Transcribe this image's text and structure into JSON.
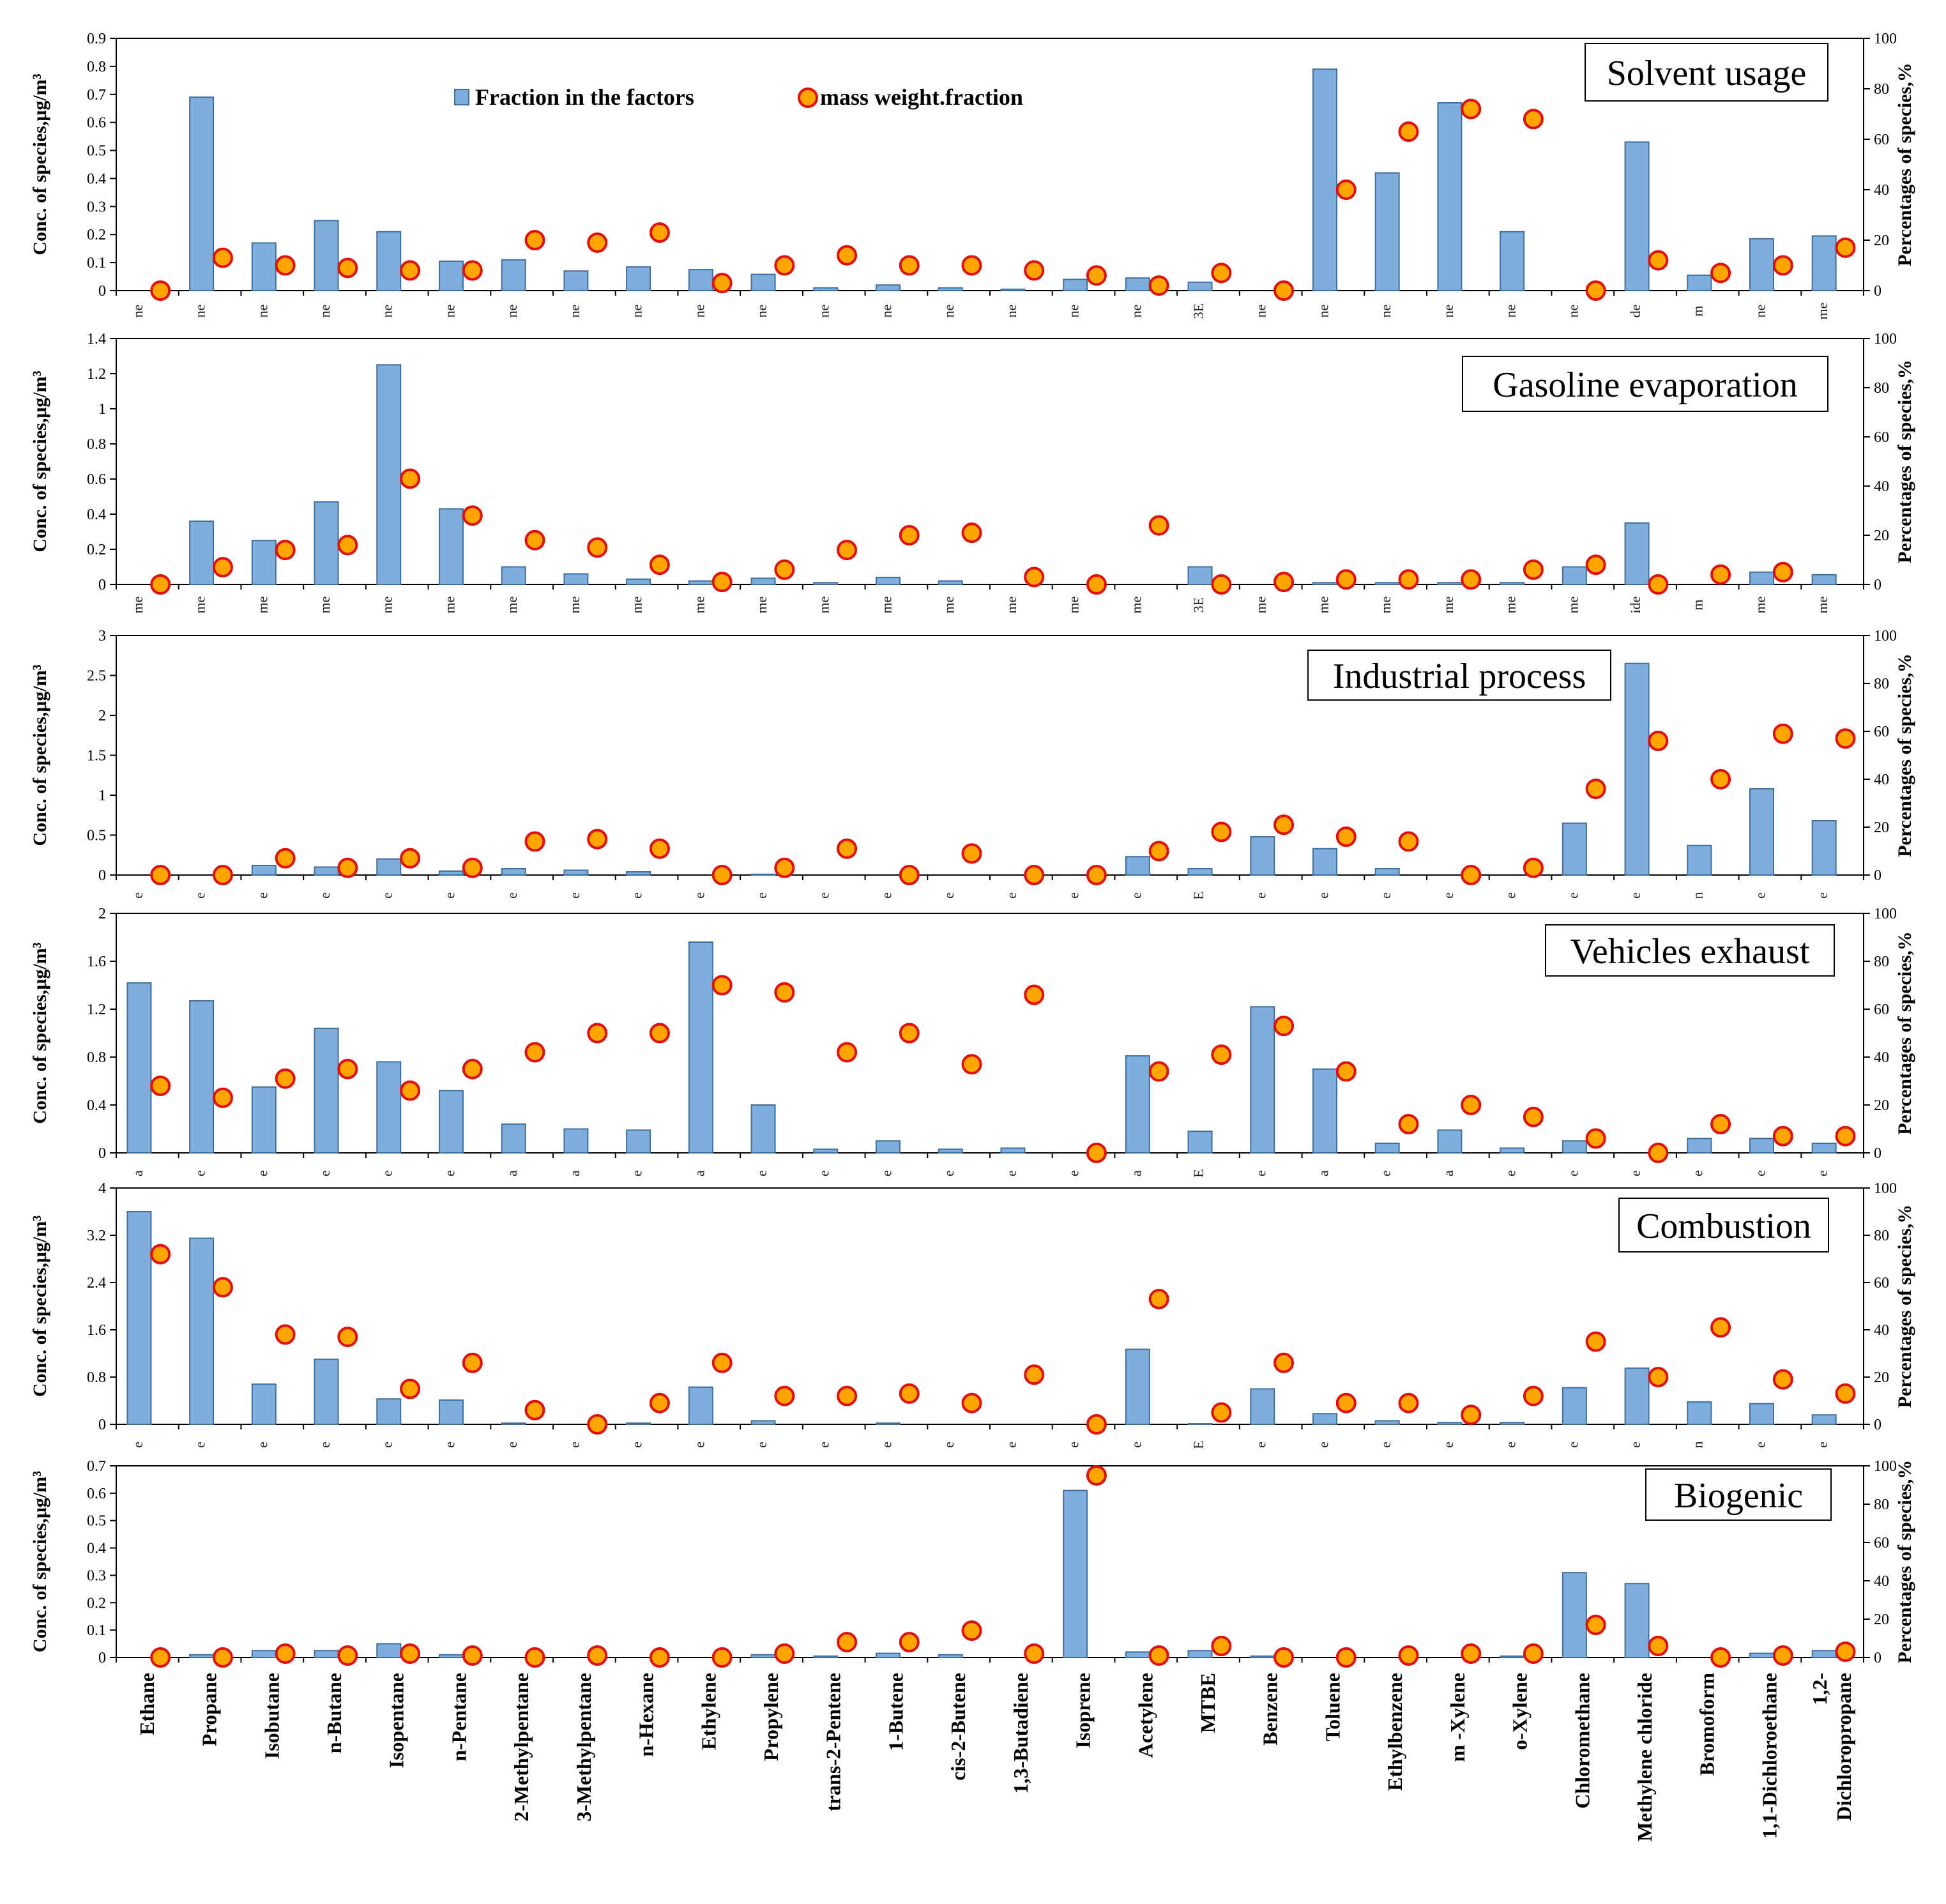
{
  "chart_data": {
    "type": "bar",
    "categories": [
      "Ethane",
      "Propane",
      "Isobutane",
      "n-Butane",
      "Isopentane",
      "n-Pentane",
      "2-Methylpentane",
      "3-Methylpentane",
      "n-Hexane",
      "Ethylene",
      "Propylene",
      "trans-2-Pentene",
      "1-Butene",
      "cis-2-Butene",
      "1,3-Butadiene",
      "Isoprene",
      "Acetylene",
      "MTBE",
      "Benzene",
      "Toluene",
      "Ethylbenzene",
      "m -Xylene",
      "o-Xylene",
      "Chloromethane",
      "Methylene chloride",
      "Bromoform",
      "1,1-Dichloroethane",
      "1,2-Dichloropropane"
    ],
    "category_lines": [
      [
        "Ethane"
      ],
      [
        "Propane"
      ],
      [
        "Isobutane"
      ],
      [
        "n-Butane"
      ],
      [
        "Isopentane"
      ],
      [
        "n-Pentane"
      ],
      [
        "2-Methylpentane"
      ],
      [
        "3-Methylpentane"
      ],
      [
        "n-Hexane"
      ],
      [
        "Ethylene"
      ],
      [
        "Propylene"
      ],
      [
        "trans-2-Pentene"
      ],
      [
        "1-Butene"
      ],
      [
        "cis-2-Butene"
      ],
      [
        "1,3-Butadiene"
      ],
      [
        "Isoprene"
      ],
      [
        "Acetylene"
      ],
      [
        "MTBE"
      ],
      [
        "Benzene"
      ],
      [
        "Toluene"
      ],
      [
        "Ethylbenzene"
      ],
      [
        "m -Xylene"
      ],
      [
        "o-Xylene"
      ],
      [
        "Chloromethane"
      ],
      [
        "Methylene chloride"
      ],
      [
        "Bromoform"
      ],
      [
        "1,1-Dichloroethane"
      ],
      [
        "1,2-",
        "Dichloropropane"
      ]
    ],
    "legend": {
      "bar": "Fraction in the factors",
      "marker": "mass weight.fraction"
    },
    "colors": {
      "bar_fill": "#7eaedb",
      "bar_stroke": "#3f6f9f",
      "marker_fill": "#ffa500",
      "marker_stroke": "#e01010"
    },
    "y2label": "Percentages of species,%",
    "panels": [
      {
        "title": "Solvent usage",
        "ylabel": "Conc. of species,μg/m³",
        "ylim": [
          0,
          0.9
        ],
        "yticks": [
          "0",
          "0.1",
          "0.2",
          "0.3",
          "0.4",
          "0.5",
          "0.6",
          "0.7",
          "0.8",
          "0.9"
        ],
        "y2lim": [
          0,
          100
        ],
        "y2ticks": [
          "0",
          "20",
          "40",
          "60",
          "80",
          "100"
        ],
        "clipped_labels": [
          "ne",
          "ne",
          "ne",
          "ne",
          "ne",
          "ne",
          "ne",
          "ne",
          "ne",
          "ne",
          "ne",
          "ne",
          "ne",
          "ne",
          "ne",
          "ne",
          "ne",
          "3E",
          "ne",
          "ne",
          "ne",
          "ne",
          "ne",
          "ne",
          "de",
          "m",
          "ne",
          "me"
        ],
        "bar_values": [
          0,
          0.69,
          0.17,
          0.25,
          0.21,
          0.105,
          0.11,
          0.07,
          0.085,
          0.075,
          0.058,
          0.01,
          0.02,
          0.01,
          0.005,
          0.04,
          0.045,
          0.03,
          0,
          0.79,
          0.42,
          0.67,
          0.21,
          0,
          0.53,
          0.055,
          0.185,
          0.195
        ],
        "marker_values": [
          0,
          13,
          10,
          9,
          8,
          8,
          20,
          19,
          23,
          3,
          10,
          14,
          10,
          10,
          8,
          6,
          2,
          7,
          0,
          40,
          63,
          72,
          68,
          0,
          12,
          7,
          10,
          17
        ]
      },
      {
        "title": "Gasoline evaporation",
        "ylabel": "Conc. of species,μg/m³",
        "ylim": [
          0,
          1.4
        ],
        "yticks": [
          "0",
          "0.2",
          "0.4",
          "0.6",
          "0.8",
          "1",
          "1.2",
          "1.4"
        ],
        "y2lim": [
          0,
          100
        ],
        "y2ticks": [
          "0",
          "20",
          "40",
          "60",
          "80",
          "100"
        ],
        "clipped_labels": [
          "me",
          "me",
          "me",
          "me",
          "me",
          "me",
          "me",
          "me",
          "me",
          "me",
          "me",
          "me",
          "me",
          "me",
          "me",
          "me",
          "me",
          "3E",
          "me",
          "me",
          "me",
          "me",
          "me",
          "me",
          "ide",
          "m",
          "me",
          "me"
        ],
        "bar_values": [
          0,
          0.36,
          0.25,
          0.47,
          1.25,
          0.43,
          0.1,
          0.06,
          0.03,
          0.02,
          0.035,
          0.01,
          0.04,
          0.02,
          0,
          0,
          0,
          0.1,
          0,
          0.01,
          0.01,
          0.01,
          0.01,
          0.1,
          0.35,
          0,
          0.07,
          0.055
        ],
        "marker_values": [
          0,
          7,
          14,
          16,
          43,
          28,
          18,
          15,
          8,
          1,
          6,
          14,
          20,
          21,
          3,
          0,
          24,
          0,
          1,
          2,
          2,
          2,
          6,
          8,
          0,
          4,
          5,
          null
        ]
      },
      {
        "title": "Industrial process",
        "ylabel": "Conc. of species,μg/m³",
        "ylim": [
          0,
          3
        ],
        "yticks": [
          "0",
          "0.5",
          "1",
          "1.5",
          "2",
          "2.5",
          "3"
        ],
        "y2lim": [
          0,
          100
        ],
        "y2ticks": [
          "0",
          "20",
          "40",
          "60",
          "80",
          "100"
        ],
        "clipped_labels": [
          "e",
          "e",
          "e",
          "e",
          "e",
          "e",
          "e",
          "e",
          "e",
          "e",
          "e",
          "e",
          "e",
          "e",
          "e",
          "e",
          "e",
          "E",
          "e",
          "e",
          "e",
          "e",
          "e",
          "e",
          "e",
          "n",
          "e",
          "e"
        ],
        "bar_values": [
          0,
          0,
          0.12,
          0.1,
          0.2,
          0.05,
          0.08,
          0.06,
          0.04,
          0,
          0.01,
          0,
          0,
          0,
          0,
          0,
          0.23,
          0.08,
          0.48,
          0.33,
          0.08,
          0,
          0,
          0.65,
          2.65,
          0.37,
          1.08,
          0.68
        ],
        "marker_values": [
          0,
          0,
          7,
          3,
          7,
          3,
          14,
          15,
          11,
          0,
          3,
          11,
          0,
          9,
          0,
          0,
          10,
          18,
          21,
          16,
          14,
          0,
          3,
          36,
          56,
          40,
          59,
          57
        ]
      },
      {
        "title": "Vehicles exhaust",
        "ylabel": "Conc. of species,μg/m³",
        "ylim": [
          0,
          2
        ],
        "yticks": [
          "0",
          "0.4",
          "0.8",
          "1.2",
          "1.6",
          "2"
        ],
        "y2lim": [
          0,
          100
        ],
        "y2ticks": [
          "0",
          "20",
          "40",
          "60",
          "80",
          "100"
        ],
        "clipped_labels": [
          "a",
          "e",
          "e",
          "e",
          "e",
          "e",
          "a",
          "a",
          "e",
          "a",
          "e",
          "e",
          "e",
          "e",
          "e",
          "e",
          "a",
          "E",
          "e",
          "a",
          "e",
          "a",
          "e",
          "e",
          "e",
          "e",
          "e",
          "e"
        ],
        "bar_values": [
          1.42,
          1.27,
          0.55,
          1.04,
          0.76,
          0.52,
          0.24,
          0.2,
          0.19,
          1.76,
          0.4,
          0.03,
          0.1,
          0.03,
          0.04,
          0,
          0.81,
          0.18,
          1.22,
          0.7,
          0.08,
          0.19,
          0.04,
          0.1,
          0,
          0.12,
          0.12,
          0.08
        ],
        "marker_values": [
          28,
          23,
          31,
          35,
          26,
          35,
          42,
          50,
          50,
          70,
          67,
          42,
          50,
          37,
          66,
          0,
          34,
          41,
          53,
          34,
          12,
          20,
          15,
          6,
          0,
          12,
          7,
          7
        ]
      },
      {
        "title": "Combustion",
        "ylabel": "Conc. of species,μg/m³",
        "ylim": [
          0,
          4
        ],
        "yticks": [
          "0",
          "0.8",
          "1.6",
          "2.4",
          "3.2",
          "4"
        ],
        "y2lim": [
          0,
          100
        ],
        "y2ticks": [
          "0",
          "20",
          "40",
          "60",
          "80",
          "100"
        ],
        "clipped_labels": [
          "e",
          "e",
          "e",
          "e",
          "e",
          "e",
          "e",
          "e",
          "e",
          "e",
          "e",
          "e",
          "e",
          "e",
          "e",
          "e",
          "e",
          "E",
          "e",
          "e",
          "e",
          "e",
          "e",
          "e",
          "e",
          "n",
          "e",
          "e"
        ],
        "bar_values": [
          3.6,
          3.15,
          0.68,
          1.1,
          0.43,
          0.41,
          0.02,
          0,
          0.02,
          0.63,
          0.06,
          0,
          0.02,
          0,
          0,
          0,
          1.27,
          0.01,
          0.6,
          0.18,
          0.06,
          0.03,
          0.03,
          0.62,
          0.95,
          0.38,
          0.35,
          0.16
        ],
        "marker_values": [
          72,
          58,
          38,
          37,
          15,
          26,
          6,
          0,
          9,
          26,
          12,
          12,
          13,
          9,
          21,
          0,
          53,
          5,
          26,
          9,
          9,
          4,
          12,
          35,
          20,
          41,
          19,
          13
        ]
      },
      {
        "title": "Biogenic",
        "ylabel": "Conc. of species,μg/m³",
        "ylim": [
          0,
          0.7
        ],
        "yticks": [
          "0",
          "0.1",
          "0.2",
          "0.3",
          "0.4",
          "0.5",
          "0.6",
          "0.7"
        ],
        "y2lim": [
          0,
          100
        ],
        "y2ticks": [
          "0",
          "20",
          "40",
          "60",
          "80",
          "100"
        ],
        "clipped_labels": [],
        "bar_values": [
          0,
          0.01,
          0.025,
          0.025,
          0.05,
          0.01,
          0,
          0,
          0,
          0,
          0.01,
          0.005,
          0.015,
          0.01,
          0,
          0.61,
          0.02,
          0.025,
          0.005,
          0,
          0,
          0,
          0.005,
          0.31,
          0.27,
          0,
          0.015,
          0.025
        ],
        "marker_values": [
          0,
          0,
          2,
          1,
          2,
          1,
          0,
          1,
          0,
          0,
          2,
          8,
          8,
          14,
          2,
          95,
          1,
          6,
          0,
          0,
          1,
          2,
          2,
          17,
          6,
          0,
          1,
          3
        ]
      }
    ]
  }
}
